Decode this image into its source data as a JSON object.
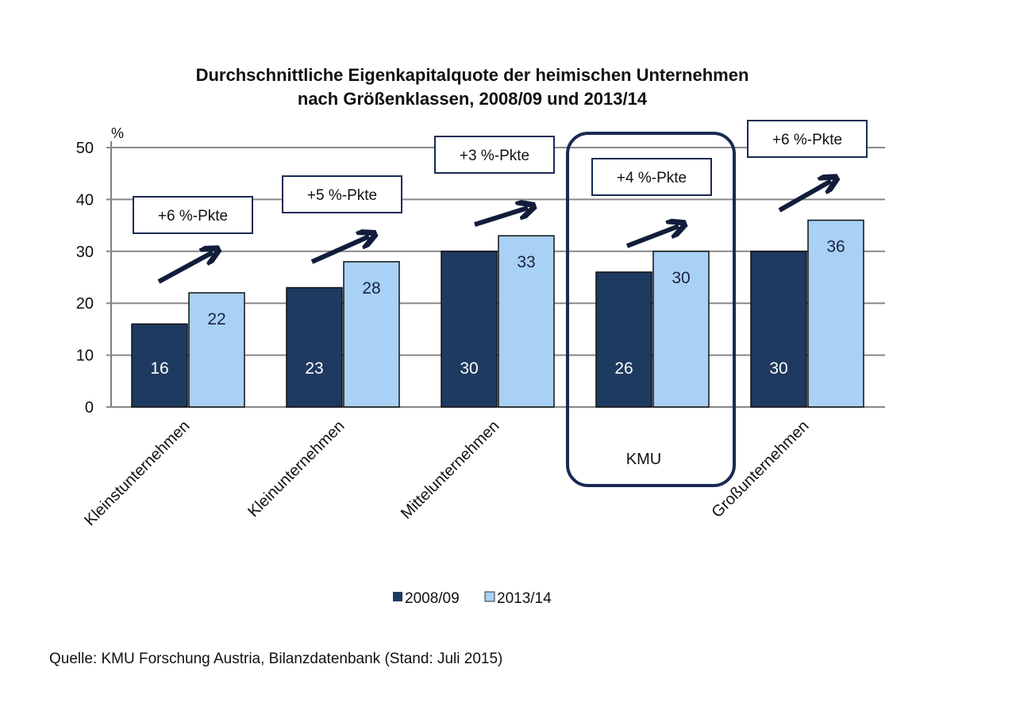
{
  "chart_data": {
    "type": "bar",
    "title": "Durchschnittliche Eigenkapitalquote der heimischen Unternehmen",
    "subtitle": "nach Größenklassen, 2008/09 und 2013/14",
    "ylabel": "%",
    "ylim": [
      0,
      50
    ],
    "yticks": [
      "0",
      "10",
      "20",
      "30",
      "40",
      "50"
    ],
    "grid": true,
    "categories": [
      "Kleinstunternehmen",
      "Kleinunternehmen",
      "Mittelunternehmen",
      "KMU",
      "Großunternehmen"
    ],
    "series": [
      {
        "name": "2008/09",
        "color": "#1f3a60",
        "values": [
          16,
          23,
          30,
          26,
          30
        ]
      },
      {
        "name": "2013/14",
        "color": "#a8d1f5",
        "values": [
          22,
          28,
          33,
          30,
          36
        ]
      }
    ],
    "annotations": [
      "+6 %-Pkte",
      "+5 %-Pkte",
      "+3 %-Pkte",
      "+4 %-Pkte",
      "+6 %-Pkte"
    ],
    "highlighted_category": "KMU",
    "legend_position": "bottom"
  },
  "source": "Quelle: KMU Forschung Austria, Bilanzdatenbank (Stand: Juli 2015)"
}
